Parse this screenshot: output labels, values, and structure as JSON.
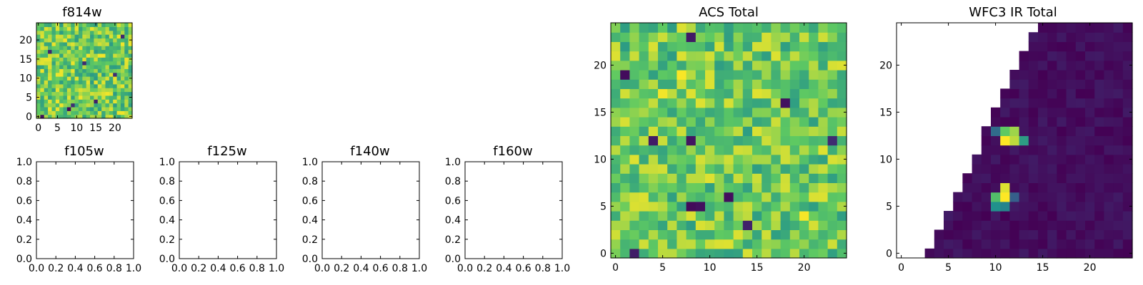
{
  "colormap": "viridis",
  "colors": {
    "viridis_stops": [
      "#440154",
      "#3b528b",
      "#21918c",
      "#5ec962",
      "#fde725"
    ],
    "axis": "#000000",
    "background": "#ffffff"
  },
  "chart_data": [
    {
      "id": "f814w",
      "type": "heatmap",
      "title": "f814w",
      "grid_size": 25,
      "xlim": [
        -0.5,
        24.5
      ],
      "ylim": [
        -0.5,
        24.5
      ],
      "xticks": [
        0,
        5,
        10,
        15,
        20
      ],
      "xtick_labels": [
        "0",
        "5",
        "10",
        "15",
        "20"
      ],
      "yticks": [
        0,
        5,
        10,
        15,
        20
      ],
      "ytick_labels": [
        "0",
        "5",
        "10",
        "15",
        "20"
      ],
      "pattern": "uniform-noise",
      "value_range": [
        0.55,
        0.98
      ],
      "low_cells": [
        [
          8,
          2
        ],
        [
          9,
          3
        ],
        [
          15,
          4
        ],
        [
          3,
          17
        ],
        [
          20,
          11
        ],
        [
          22,
          21
        ],
        [
          1,
          0
        ],
        [
          12,
          14
        ]
      ]
    },
    {
      "id": "f105w",
      "type": "heatmap",
      "title": "f105w",
      "empty": true,
      "xlim": [
        0,
        1
      ],
      "ylim": [
        0,
        1
      ],
      "xticks": [
        0,
        0.2,
        0.4,
        0.6,
        0.8,
        1.0
      ],
      "xtick_labels": [
        "0.0",
        "0.2",
        "0.4",
        "0.6",
        "0.8",
        "1.0"
      ],
      "yticks": [
        0,
        0.2,
        0.4,
        0.6,
        0.8,
        1.0
      ],
      "ytick_labels": [
        "0.0",
        "0.2",
        "0.4",
        "0.6",
        "0.8",
        "1.0"
      ]
    },
    {
      "id": "f125w",
      "type": "heatmap",
      "title": "f125w",
      "empty": true,
      "xlim": [
        0,
        1
      ],
      "ylim": [
        0,
        1
      ],
      "xticks": [
        0,
        0.2,
        0.4,
        0.6,
        0.8,
        1.0
      ],
      "xtick_labels": [
        "0.0",
        "0.2",
        "0.4",
        "0.6",
        "0.8",
        "1.0"
      ],
      "yticks": [
        0,
        0.2,
        0.4,
        0.6,
        0.8,
        1.0
      ],
      "ytick_labels": [
        "0.0",
        "0.2",
        "0.4",
        "0.6",
        "0.8",
        "1.0"
      ]
    },
    {
      "id": "f140w",
      "type": "heatmap",
      "title": "f140w",
      "empty": true,
      "xlim": [
        0,
        1
      ],
      "ylim": [
        0,
        1
      ],
      "xticks": [
        0,
        0.2,
        0.4,
        0.6,
        0.8,
        1.0
      ],
      "xtick_labels": [
        "0.0",
        "0.2",
        "0.4",
        "0.6",
        "0.8",
        "1.0"
      ],
      "yticks": [
        0,
        0.2,
        0.4,
        0.6,
        0.8,
        1.0
      ],
      "ytick_labels": [
        "0.0",
        "0.2",
        "0.4",
        "0.6",
        "0.8",
        "1.0"
      ]
    },
    {
      "id": "f160w",
      "type": "heatmap",
      "title": "f160w",
      "empty": true,
      "xlim": [
        0,
        1
      ],
      "ylim": [
        0,
        1
      ],
      "xticks": [
        0,
        0.2,
        0.4,
        0.6,
        0.8,
        1.0
      ],
      "xtick_labels": [
        "0.0",
        "0.2",
        "0.4",
        "0.6",
        "0.8",
        "1.0"
      ],
      "yticks": [
        0,
        0.2,
        0.4,
        0.6,
        0.8,
        1.0
      ],
      "ytick_labels": [
        "0.0",
        "0.2",
        "0.4",
        "0.6",
        "0.8",
        "1.0"
      ]
    },
    {
      "id": "acs_total",
      "type": "heatmap",
      "title": "ACS Total",
      "grid_size": 25,
      "xlim": [
        -0.5,
        24.5
      ],
      "ylim": [
        -0.5,
        24.5
      ],
      "xticks": [
        0,
        5,
        10,
        15,
        20
      ],
      "xtick_labels": [
        "0",
        "5",
        "10",
        "15",
        "20"
      ],
      "yticks": [
        0,
        5,
        10,
        15,
        20
      ],
      "ytick_labels": [
        "0",
        "5",
        "10",
        "15",
        "20"
      ],
      "pattern": "uniform-noise",
      "value_range": [
        0.55,
        0.95
      ],
      "low_cells": [
        [
          8,
          23
        ],
        [
          1,
          19
        ],
        [
          8,
          5
        ],
        [
          9,
          5
        ],
        [
          4,
          12
        ],
        [
          8,
          12
        ],
        [
          12,
          6
        ],
        [
          2,
          0
        ],
        [
          23,
          12
        ],
        [
          18,
          16
        ],
        [
          14,
          3
        ]
      ],
      "high_cells": [
        [
          7,
          19
        ],
        [
          5,
          17
        ],
        [
          15,
          17
        ],
        [
          20,
          4
        ],
        [
          22,
          6
        ],
        [
          3,
          6
        ],
        [
          14,
          0
        ],
        [
          10,
          8
        ]
      ]
    },
    {
      "id": "wfc3_ir_total",
      "type": "heatmap",
      "title": "WFC3 IR Total",
      "grid_size": 25,
      "xlim": [
        -0.5,
        24.5
      ],
      "ylim": [
        -0.5,
        24.5
      ],
      "xticks": [
        0,
        5,
        10,
        15,
        20
      ],
      "xtick_labels": [
        "0",
        "5",
        "10",
        "15",
        "20"
      ],
      "yticks": [
        0,
        5,
        10,
        15,
        20
      ],
      "ytick_labels": [
        "0",
        "5",
        "10",
        "15",
        "20"
      ],
      "pattern": "masked-triangle",
      "mask_edge": [
        [
          2.5,
          -0.5
        ],
        [
          14.5,
          24.5
        ]
      ],
      "value_range": [
        0.0,
        0.08
      ],
      "sources": [
        {
          "x": 11,
          "y": 12,
          "peak": 1.0
        },
        {
          "x": 12,
          "y": 12,
          "peak": 0.9
        },
        {
          "x": 11,
          "y": 13,
          "peak": 0.75
        },
        {
          "x": 12,
          "y": 13,
          "peak": 0.85
        },
        {
          "x": 13,
          "y": 12,
          "peak": 0.55
        },
        {
          "x": 10,
          "y": 13,
          "peak": 0.35
        },
        {
          "x": 11,
          "y": 6,
          "peak": 1.0
        },
        {
          "x": 11,
          "y": 7,
          "peak": 0.95
        },
        {
          "x": 10,
          "y": 6,
          "peak": 0.7
        },
        {
          "x": 10,
          "y": 5,
          "peak": 0.5
        },
        {
          "x": 11,
          "y": 5,
          "peak": 0.45
        },
        {
          "x": 12,
          "y": 6,
          "peak": 0.3
        }
      ]
    }
  ]
}
